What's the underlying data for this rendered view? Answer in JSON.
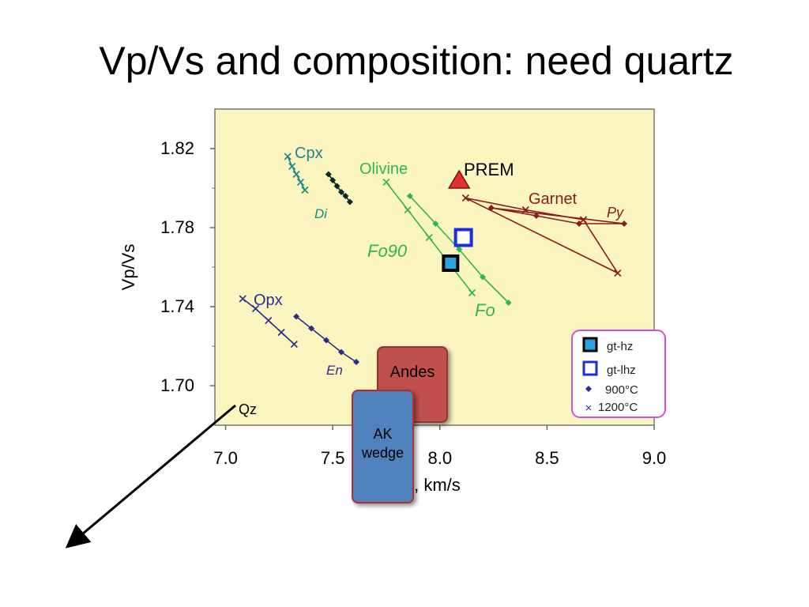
{
  "slide": {
    "title": "Vp/Vs and composition: need quartz"
  },
  "callouts": {
    "andes": "Andes",
    "ak_line1": "AK",
    "ak_line2": "wedge"
  },
  "colors": {
    "plot_bg": "#fbf5c0",
    "teal": "#1a8a8a",
    "navy": "#2b2f8c",
    "green": "#2fb84a",
    "maroon": "#8b1a1a",
    "prem_red": "#e03030",
    "gthz_fill": "#2aa4e0",
    "gtlhz_stroke": "#1a2ee0",
    "legend_border": "#d34fd3"
  },
  "chart_data": {
    "type": "scatter",
    "xlabel": "Vp, km/s",
    "ylabel": "Vp/Vs",
    "xlim": [
      6.95,
      9.0
    ],
    "ylim": [
      1.68,
      1.84
    ],
    "xticks": [
      7.0,
      7.5,
      8.0,
      8.5,
      9.0
    ],
    "xtick_labels": [
      "7.0",
      "7.5",
      "8.0",
      "8.5",
      "9.0"
    ],
    "yticks": [
      1.7,
      1.74,
      1.78,
      1.82
    ],
    "ytick_labels": [
      "1.70",
      "1.74",
      "1.78",
      "1.82"
    ],
    "grid": false,
    "legend_position": "bottom-right",
    "legend": [
      {
        "label": "gt-hz",
        "marker": "filled-square"
      },
      {
        "label": "gt-lhz",
        "marker": "open-square"
      },
      {
        "label": "900°C",
        "marker": "diamond"
      },
      {
        "label": "1200°C",
        "marker": "x"
      }
    ],
    "series": [
      {
        "name": "Cpx",
        "marker": "x",
        "color": "#1a8a8a",
        "x": [
          7.29,
          7.31,
          7.33,
          7.35,
          7.37
        ],
        "y": [
          1.816,
          1.811,
          1.807,
          1.803,
          1.799
        ]
      },
      {
        "name": "Di",
        "marker": "diamond",
        "color": "#0a2a2a",
        "x": [
          7.48,
          7.5,
          7.52,
          7.54,
          7.56,
          7.58
        ],
        "y": [
          1.807,
          1.804,
          1.801,
          1.798,
          1.796,
          1.793
        ]
      },
      {
        "name": "Opx",
        "marker": "x",
        "color": "#2b2f8c",
        "x": [
          7.08,
          7.14,
          7.2,
          7.26,
          7.32
        ],
        "y": [
          1.744,
          1.739,
          1.733,
          1.727,
          1.721
        ]
      },
      {
        "name": "En",
        "marker": "diamond",
        "color": "#2b2f8c",
        "x": [
          7.33,
          7.4,
          7.47,
          7.54,
          7.61
        ],
        "y": [
          1.735,
          1.729,
          1.723,
          1.717,
          1.712
        ]
      },
      {
        "name": "Fo90",
        "marker": "x",
        "color": "#2fb84a",
        "x": [
          7.75,
          7.85,
          7.95,
          8.05,
          8.15
        ],
        "y": [
          1.803,
          1.789,
          1.775,
          1.761,
          1.747
        ]
      },
      {
        "name": "Fo",
        "marker": "diamond",
        "color": "#2fb84a",
        "x": [
          7.86,
          7.98,
          8.09,
          8.2,
          8.32
        ],
        "y": [
          1.796,
          1.782,
          1.769,
          1.755,
          1.742
        ]
      },
      {
        "name": "Py",
        "marker": "diamond",
        "color": "#8b1a1a",
        "x": [
          8.24,
          8.45,
          8.65,
          8.86
        ],
        "y": [
          1.79,
          1.786,
          1.782,
          1.782
        ]
      },
      {
        "name": "Garnet 1200°C",
        "marker": "x",
        "color": "#8b1a1a",
        "x": [
          8.12,
          8.4,
          8.67,
          8.83
        ],
        "y": [
          1.795,
          1.789,
          1.784,
          1.757
        ]
      }
    ],
    "annotations": [
      {
        "text": "Cpx"
      },
      {
        "text": "Di"
      },
      {
        "text": "Olivine"
      },
      {
        "text": "PREM"
      },
      {
        "text": "Garnet"
      },
      {
        "text": "Py"
      },
      {
        "text": "Fo90"
      },
      {
        "text": "Fo"
      },
      {
        "text": "Opx"
      },
      {
        "text": "En"
      },
      {
        "text": "Qz"
      }
    ],
    "points": [
      {
        "label": "PREM",
        "marker": "triangle",
        "x": 8.09,
        "y": 1.804
      },
      {
        "label": "gt-hz",
        "marker": "filled-square",
        "x": 8.05,
        "y": 1.762
      },
      {
        "label": "gt-lhz",
        "marker": "open-square",
        "x": 8.11,
        "y": 1.775
      }
    ]
  }
}
